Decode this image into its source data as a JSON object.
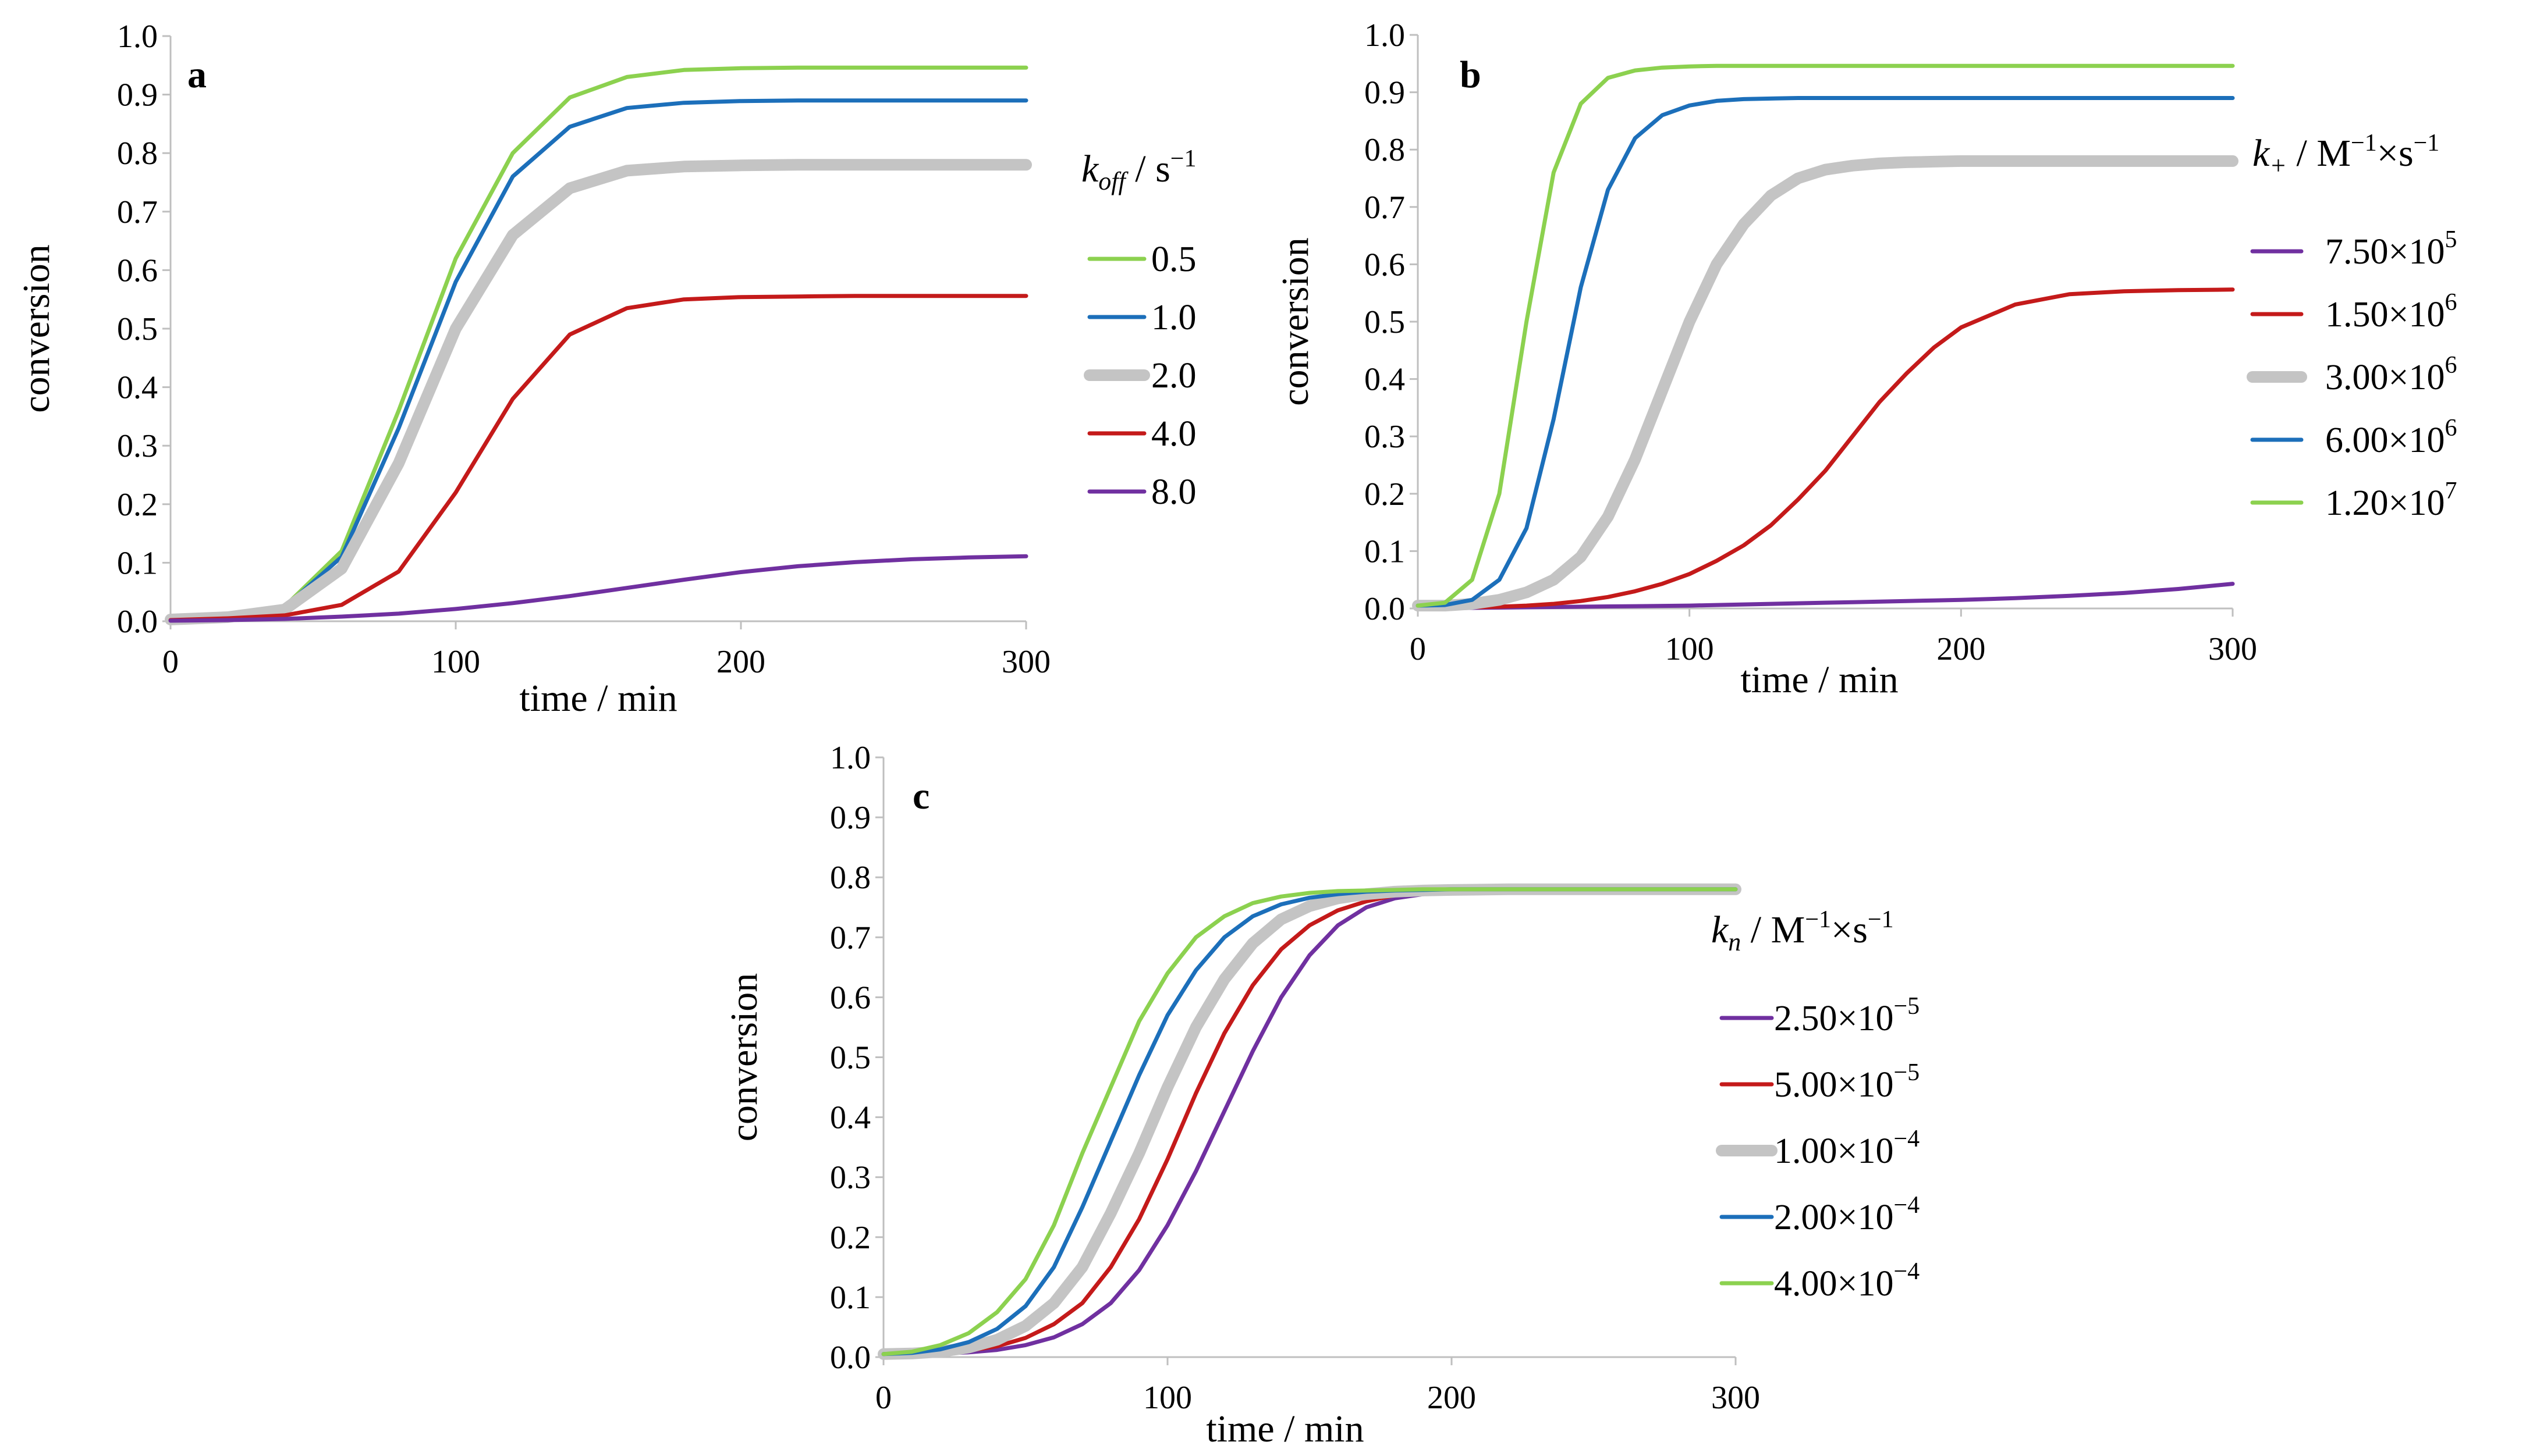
{
  "chart_data": [
    {
      "type": "line",
      "panel_label": "a",
      "xlabel": "time / min",
      "ylabel": "conversion",
      "xlim": [
        0,
        300
      ],
      "ylim": [
        0,
        1.0
      ],
      "xticks": [
        0,
        100,
        200,
        300
      ],
      "xtick_labels": [
        "0",
        "100",
        "200",
        "300"
      ],
      "yticks": [
        0,
        0.1,
        0.2,
        0.3,
        0.4,
        0.5,
        0.6,
        0.7,
        0.8,
        0.9,
        1.0
      ],
      "ytick_labels": [
        "0.0",
        "0.1",
        "0.2",
        "0.3",
        "0.4",
        "0.5",
        "0.6",
        "0.7",
        "0.8",
        "0.9",
        "1.0"
      ],
      "legend_title": {
        "sym": "k",
        "sub": "off",
        "unit": " / s",
        "sup": "−1"
      },
      "x": [
        0,
        20,
        40,
        60,
        80,
        100,
        120,
        140,
        160,
        180,
        200,
        220,
        240,
        260,
        280,
        300
      ],
      "series": [
        {
          "name": "0.5",
          "color": "#8cd14f",
          "thick": false,
          "values": [
            0.003,
            0.008,
            0.025,
            0.12,
            0.36,
            0.62,
            0.8,
            0.895,
            0.93,
            0.942,
            0.945,
            0.946,
            0.946,
            0.946,
            0.946,
            0.946
          ]
        },
        {
          "name": "1.0",
          "color": "#1c6fba",
          "thick": false,
          "values": [
            0.003,
            0.008,
            0.024,
            0.11,
            0.33,
            0.58,
            0.76,
            0.845,
            0.877,
            0.886,
            0.889,
            0.89,
            0.89,
            0.89,
            0.89,
            0.89
          ]
        },
        {
          "name": "2.0",
          "color": "#c4c4c4",
          "thick": true,
          "values": [
            0.003,
            0.007,
            0.02,
            0.09,
            0.27,
            0.5,
            0.66,
            0.74,
            0.77,
            0.777,
            0.779,
            0.78,
            0.78,
            0.78,
            0.78,
            0.78
          ]
        },
        {
          "name": "4.0",
          "color": "#c41a1a",
          "thick": false,
          "values": [
            0.002,
            0.005,
            0.01,
            0.028,
            0.085,
            0.22,
            0.38,
            0.49,
            0.535,
            0.55,
            0.554,
            0.555,
            0.556,
            0.556,
            0.556,
            0.556
          ]
        },
        {
          "name": "8.0",
          "color": "#7030a0",
          "thick": false,
          "values": [
            0.001,
            0.002,
            0.004,
            0.008,
            0.013,
            0.021,
            0.031,
            0.043,
            0.057,
            0.071,
            0.084,
            0.094,
            0.101,
            0.106,
            0.109,
            0.111
          ]
        }
      ]
    },
    {
      "type": "line",
      "panel_label": "b",
      "xlabel": "time / min",
      "ylabel": "conversion",
      "xlim": [
        0,
        300
      ],
      "ylim": [
        0,
        1.0
      ],
      "xticks": [
        0,
        100,
        200,
        300
      ],
      "xtick_labels": [
        "0",
        "100",
        "200",
        "300"
      ],
      "yticks": [
        0,
        0.1,
        0.2,
        0.3,
        0.4,
        0.5,
        0.6,
        0.7,
        0.8,
        0.9,
        1.0
      ],
      "ytick_labels": [
        "0.0",
        "0.1",
        "0.2",
        "0.3",
        "0.4",
        "0.5",
        "0.6",
        "0.7",
        "0.8",
        "0.9",
        "1.0"
      ],
      "legend_title": {
        "sym": "k",
        "sub": "+",
        "unit": " / M",
        "sup": "−1",
        "unit2": "×s",
        "sup2": "−1"
      },
      "x": [
        0,
        10,
        20,
        30,
        40,
        50,
        60,
        70,
        80,
        90,
        100,
        110,
        120,
        130,
        140,
        150,
        160,
        170,
        180,
        190,
        200,
        220,
        240,
        260,
        280,
        300
      ],
      "series": [
        {
          "name": "7.50×10",
          "exp": "5",
          "color": "#7030a0",
          "thick": false,
          "values": [
            0.0,
            0.0005,
            0.001,
            0.0015,
            0.002,
            0.0025,
            0.003,
            0.0035,
            0.004,
            0.0045,
            0.005,
            0.006,
            0.007,
            0.008,
            0.009,
            0.01,
            0.011,
            0.012,
            0.013,
            0.014,
            0.015,
            0.018,
            0.022,
            0.027,
            0.034,
            0.043
          ]
        },
        {
          "name": "1.50×10",
          "exp": "6",
          "color": "#c41a1a",
          "thick": false,
          "values": [
            0.0,
            0.001,
            0.002,
            0.003,
            0.005,
            0.008,
            0.013,
            0.02,
            0.03,
            0.043,
            0.06,
            0.083,
            0.11,
            0.145,
            0.19,
            0.24,
            0.3,
            0.36,
            0.41,
            0.455,
            0.49,
            0.53,
            0.548,
            0.553,
            0.555,
            0.556
          ]
        },
        {
          "name": "3.00×10",
          "exp": "6",
          "color": "#c4c4c4",
          "thick": true,
          "values": [
            0.005,
            0.005,
            0.008,
            0.015,
            0.028,
            0.05,
            0.09,
            0.16,
            0.26,
            0.38,
            0.5,
            0.6,
            0.67,
            0.72,
            0.75,
            0.765,
            0.772,
            0.776,
            0.778,
            0.779,
            0.78,
            0.78,
            0.78,
            0.78,
            0.78,
            0.78
          ]
        },
        {
          "name": "6.00×10",
          "exp": "6",
          "color": "#1c6fba",
          "thick": false,
          "values": [
            0.005,
            0.006,
            0.015,
            0.05,
            0.14,
            0.33,
            0.56,
            0.73,
            0.82,
            0.86,
            0.877,
            0.885,
            0.888,
            0.889,
            0.89,
            0.89,
            0.89,
            0.89,
            0.89,
            0.89,
            0.89,
            0.89,
            0.89,
            0.89,
            0.89,
            0.89
          ]
        },
        {
          "name": "1.20×10",
          "exp": "7",
          "color": "#8cd14f",
          "thick": false,
          "values": [
            0.005,
            0.01,
            0.05,
            0.2,
            0.5,
            0.76,
            0.88,
            0.925,
            0.938,
            0.943,
            0.945,
            0.946,
            0.946,
            0.946,
            0.946,
            0.946,
            0.946,
            0.946,
            0.946,
            0.946,
            0.946,
            0.946,
            0.946,
            0.946,
            0.946,
            0.946
          ]
        }
      ]
    },
    {
      "type": "line",
      "panel_label": "c",
      "xlabel": "time / min",
      "ylabel": "conversion",
      "xlim": [
        0,
        300
      ],
      "ylim": [
        0,
        1.0
      ],
      "xticks": [
        0,
        100,
        200,
        300
      ],
      "xtick_labels": [
        "0",
        "100",
        "200",
        "300"
      ],
      "yticks": [
        0,
        0.1,
        0.2,
        0.3,
        0.4,
        0.5,
        0.6,
        0.7,
        0.8,
        0.9,
        1.0
      ],
      "ytick_labels": [
        "0.0",
        "0.1",
        "0.2",
        "0.3",
        "0.4",
        "0.5",
        "0.6",
        "0.7",
        "0.8",
        "0.9",
        "1.0"
      ],
      "legend_title": {
        "sym": "k",
        "sub": "n",
        "unit": " / M",
        "sup": "−1",
        "unit2": "×s",
        "sup2": "−1"
      },
      "x": [
        0,
        10,
        20,
        30,
        40,
        50,
        60,
        70,
        80,
        90,
        100,
        110,
        120,
        130,
        140,
        150,
        160,
        170,
        180,
        190,
        200,
        220,
        240,
        260,
        280,
        300
      ],
      "series": [
        {
          "name": "2.50×10",
          "exp": "−5",
          "color": "#7030a0",
          "thick": false,
          "values": [
            0.005,
            0.005,
            0.006,
            0.008,
            0.012,
            0.02,
            0.033,
            0.055,
            0.09,
            0.145,
            0.22,
            0.31,
            0.41,
            0.51,
            0.6,
            0.67,
            0.72,
            0.75,
            0.765,
            0.772,
            0.776,
            0.778,
            0.779,
            0.78,
            0.78,
            0.78
          ]
        },
        {
          "name": "5.00×10",
          "exp": "−5",
          "color": "#c41a1a",
          "thick": false,
          "values": [
            0.005,
            0.005,
            0.007,
            0.011,
            0.018,
            0.032,
            0.055,
            0.09,
            0.15,
            0.23,
            0.33,
            0.44,
            0.54,
            0.62,
            0.68,
            0.72,
            0.745,
            0.76,
            0.77,
            0.775,
            0.777,
            0.779,
            0.78,
            0.78,
            0.78,
            0.78
          ]
        },
        {
          "name": "1.00×10",
          "exp": "−4",
          "color": "#c4c4c4",
          "thick": true,
          "values": [
            0.005,
            0.006,
            0.009,
            0.016,
            0.029,
            0.052,
            0.09,
            0.15,
            0.24,
            0.34,
            0.45,
            0.55,
            0.63,
            0.69,
            0.73,
            0.752,
            0.765,
            0.772,
            0.776,
            0.778,
            0.779,
            0.78,
            0.78,
            0.78,
            0.78,
            0.78
          ]
        },
        {
          "name": "2.00×10",
          "exp": "−4",
          "color": "#1c6fba",
          "thick": false,
          "values": [
            0.005,
            0.007,
            0.013,
            0.025,
            0.047,
            0.085,
            0.15,
            0.25,
            0.36,
            0.47,
            0.57,
            0.645,
            0.7,
            0.735,
            0.755,
            0.766,
            0.772,
            0.776,
            0.778,
            0.779,
            0.78,
            0.78,
            0.78,
            0.78,
            0.78,
            0.78
          ]
        },
        {
          "name": "4.00×10",
          "exp": "−4",
          "color": "#8cd14f",
          "thick": false,
          "values": [
            0.005,
            0.009,
            0.02,
            0.04,
            0.075,
            0.13,
            0.22,
            0.34,
            0.45,
            0.56,
            0.64,
            0.7,
            0.735,
            0.757,
            0.768,
            0.774,
            0.777,
            0.778,
            0.779,
            0.78,
            0.78,
            0.78,
            0.78,
            0.78,
            0.78,
            0.78
          ]
        }
      ]
    }
  ]
}
